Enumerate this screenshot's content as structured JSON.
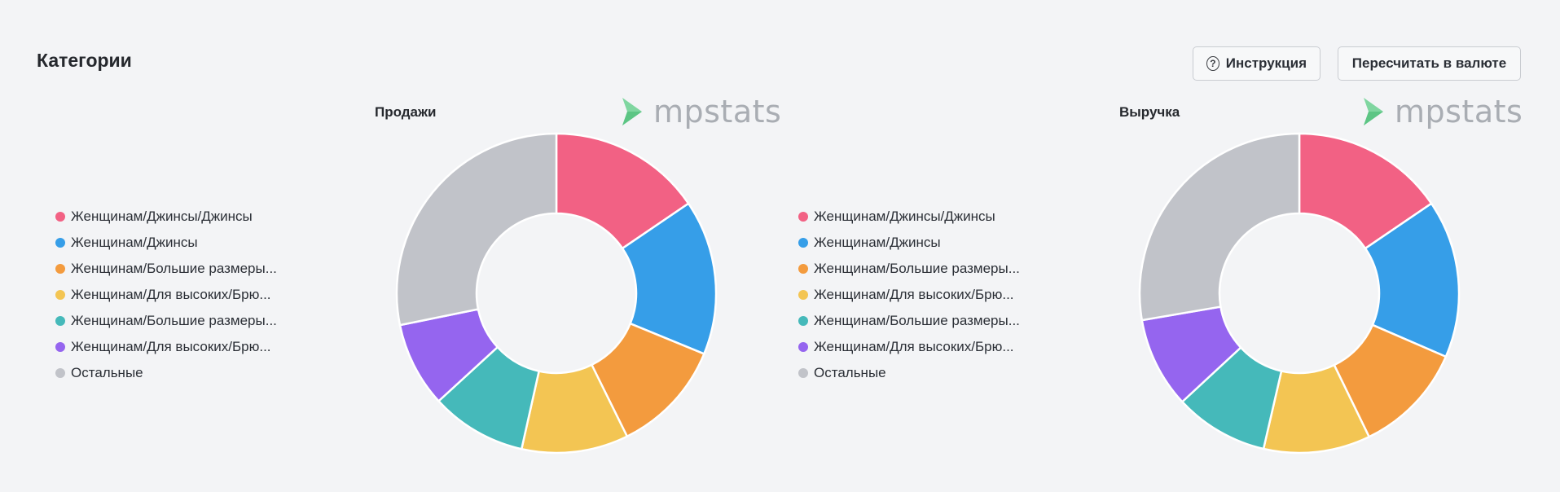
{
  "section": {
    "title": "Категории",
    "buttons": {
      "instruction_label": "Инструкция",
      "recalc_label": "Пересчитать в валюте"
    }
  },
  "brand": {
    "name": "mpstats",
    "color": "#7fd6a0"
  },
  "legend_items": [
    {
      "label": "Женщинам/Джинсы/Джинсы",
      "color": "#f26184"
    },
    {
      "label": "Женщинам/Джинсы",
      "color": "#369ee8"
    },
    {
      "label": "Женщинам/Большие размеры...",
      "color": "#f39b3e"
    },
    {
      "label": "Женщинам/Для высоких/Брю...",
      "color": "#f3c553"
    },
    {
      "label": "Женщинам/Большие размеры...",
      "color": "#45b9ba"
    },
    {
      "label": "Женщинам/Для высоких/Брю...",
      "color": "#9565ef"
    },
    {
      "label": "Остальные",
      "color": "#c1c3c9"
    }
  ],
  "chart_data": [
    {
      "type": "pie",
      "title": "Продажи",
      "categories": [
        "Женщинам/Джинсы/Джинсы",
        "Женщинам/Джинсы",
        "Женщинам/Большие размеры...",
        "Женщинам/Для высоких/Брю...",
        "Женщинам/Большие размеры...",
        "Женщинам/Для высоких/Брю...",
        "Остальные"
      ],
      "values": [
        15.5,
        15.7,
        11.5,
        10.8,
        9.7,
        8.6,
        28.2
      ],
      "colors": [
        "#f26184",
        "#369ee8",
        "#f39b3e",
        "#f3c553",
        "#45b9ba",
        "#9565ef",
        "#c1c3c9"
      ],
      "donut": true,
      "legend": "left"
    },
    {
      "type": "pie",
      "title": "Выручка",
      "categories": [
        "Женщинам/Джинсы/Джинсы",
        "Женщинам/Джинсы",
        "Женщинам/Большие размеры...",
        "Женщинам/Для высоких/Брю...",
        "Женщинам/Большие размеры...",
        "Женщинам/Для высоких/Брю...",
        "Остальные"
      ],
      "values": [
        15.5,
        16.0,
        11.3,
        10.8,
        9.5,
        9.2,
        27.7
      ],
      "colors": [
        "#f26184",
        "#369ee8",
        "#f39b3e",
        "#f3c553",
        "#45b9ba",
        "#9565ef",
        "#c1c3c9"
      ],
      "donut": true,
      "legend": "left"
    }
  ]
}
